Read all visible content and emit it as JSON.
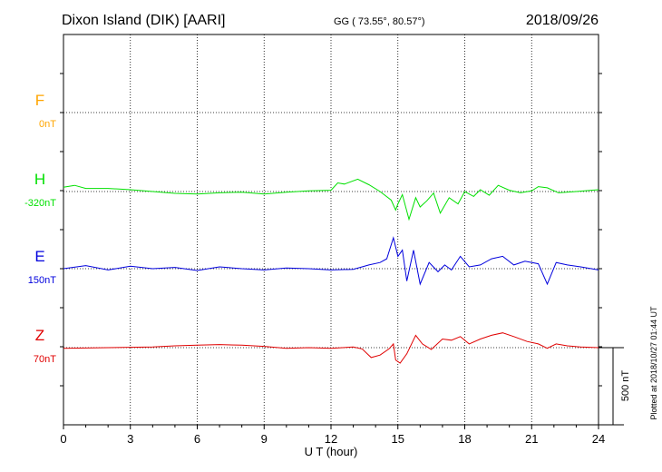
{
  "header": {
    "station": "Dixon Island (DIK)  [AARI]",
    "coords": "GG ( 73.55°,  80.57°)",
    "date": "2018/09/26"
  },
  "side_note": "Plotted at 2018/10/27 01:44 UT",
  "scale_label": "500 nT",
  "colors": {
    "F": "#ffa500",
    "H": "#00e000",
    "E": "#0000dd",
    "Z": "#e00000"
  },
  "chart_data": {
    "type": "line",
    "xlabel": "U T (hour)",
    "ylabel": "",
    "xlim": [
      0,
      24
    ],
    "x_ticks": [
      "0",
      "3",
      "6",
      "9",
      "12",
      "15",
      "18",
      "21",
      "24"
    ],
    "grid": true,
    "scale_bar_nT": 500,
    "series": [
      {
        "name": "F",
        "baseline": "0nT",
        "points": []
      },
      {
        "name": "H",
        "baseline": "-320nT",
        "points": [
          [
            0,
            28
          ],
          [
            0.5,
            40
          ],
          [
            1,
            20
          ],
          [
            2,
            20
          ],
          [
            3,
            12
          ],
          [
            4,
            0
          ],
          [
            5,
            -12
          ],
          [
            6,
            -16
          ],
          [
            7,
            -8
          ],
          [
            8,
            -4
          ],
          [
            9,
            -16
          ],
          [
            10,
            -4
          ],
          [
            11,
            4
          ],
          [
            12,
            8
          ],
          [
            12.3,
            56
          ],
          [
            12.6,
            48
          ],
          [
            13.2,
            80
          ],
          [
            13.7,
            44
          ],
          [
            14.2,
            0
          ],
          [
            14.7,
            -56
          ],
          [
            14.9,
            -120
          ],
          [
            15.0,
            -80
          ],
          [
            15.2,
            -20
          ],
          [
            15.5,
            -180
          ],
          [
            15.8,
            -40
          ],
          [
            16.0,
            -100
          ],
          [
            16.3,
            -60
          ],
          [
            16.6,
            -10
          ],
          [
            16.9,
            -140
          ],
          [
            17.3,
            -40
          ],
          [
            17.7,
            -80
          ],
          [
            18.0,
            0
          ],
          [
            18.4,
            -32
          ],
          [
            18.7,
            12
          ],
          [
            19.1,
            -24
          ],
          [
            19.5,
            40
          ],
          [
            20.0,
            8
          ],
          [
            20.5,
            -8
          ],
          [
            21.0,
            4
          ],
          [
            21.3,
            32
          ],
          [
            21.7,
            24
          ],
          [
            22.2,
            -8
          ],
          [
            23.0,
            0
          ],
          [
            24,
            12
          ]
        ]
      },
      {
        "name": "E",
        "baseline": "150nT",
        "points": [
          [
            0,
            0
          ],
          [
            1,
            20
          ],
          [
            2,
            -8
          ],
          [
            3,
            16
          ],
          [
            4,
            0
          ],
          [
            5,
            8
          ],
          [
            6,
            -12
          ],
          [
            7,
            12
          ],
          [
            8,
            0
          ],
          [
            9,
            -8
          ],
          [
            10,
            4
          ],
          [
            11,
            0
          ],
          [
            12,
            -8
          ],
          [
            13,
            -4
          ],
          [
            13.7,
            24
          ],
          [
            14.2,
            40
          ],
          [
            14.5,
            64
          ],
          [
            14.8,
            200
          ],
          [
            15.0,
            80
          ],
          [
            15.2,
            120
          ],
          [
            15.4,
            -80
          ],
          [
            15.7,
            120
          ],
          [
            16.0,
            -100
          ],
          [
            16.4,
            40
          ],
          [
            16.8,
            -20
          ],
          [
            17.1,
            24
          ],
          [
            17.4,
            -8
          ],
          [
            17.8,
            80
          ],
          [
            18.2,
            12
          ],
          [
            18.7,
            24
          ],
          [
            19.2,
            64
          ],
          [
            19.7,
            80
          ],
          [
            20.2,
            24
          ],
          [
            20.7,
            48
          ],
          [
            21.3,
            32
          ],
          [
            21.7,
            -100
          ],
          [
            22.1,
            40
          ],
          [
            22.6,
            24
          ],
          [
            23.2,
            12
          ],
          [
            24,
            -8
          ]
        ]
      },
      {
        "name": "Z",
        "baseline": "70nT",
        "points": [
          [
            0,
            -4
          ],
          [
            2,
            0
          ],
          [
            4,
            4
          ],
          [
            5,
            12
          ],
          [
            6,
            16
          ],
          [
            7,
            20
          ],
          [
            8,
            16
          ],
          [
            9,
            8
          ],
          [
            10,
            -4
          ],
          [
            11,
            0
          ],
          [
            12,
            -4
          ],
          [
            13,
            4
          ],
          [
            13.4,
            -8
          ],
          [
            13.8,
            -64
          ],
          [
            14.2,
            -48
          ],
          [
            14.6,
            -8
          ],
          [
            14.8,
            24
          ],
          [
            14.9,
            -80
          ],
          [
            15.1,
            -100
          ],
          [
            15.4,
            -40
          ],
          [
            15.8,
            80
          ],
          [
            16.1,
            24
          ],
          [
            16.5,
            -12
          ],
          [
            17.0,
            56
          ],
          [
            17.4,
            48
          ],
          [
            17.8,
            72
          ],
          [
            18.2,
            24
          ],
          [
            18.7,
            56
          ],
          [
            19.2,
            80
          ],
          [
            19.7,
            96
          ],
          [
            20.2,
            72
          ],
          [
            20.8,
            40
          ],
          [
            21.3,
            24
          ],
          [
            21.7,
            -4
          ],
          [
            22.1,
            24
          ],
          [
            22.6,
            12
          ],
          [
            23.2,
            4
          ],
          [
            24,
            0
          ]
        ]
      }
    ]
  }
}
